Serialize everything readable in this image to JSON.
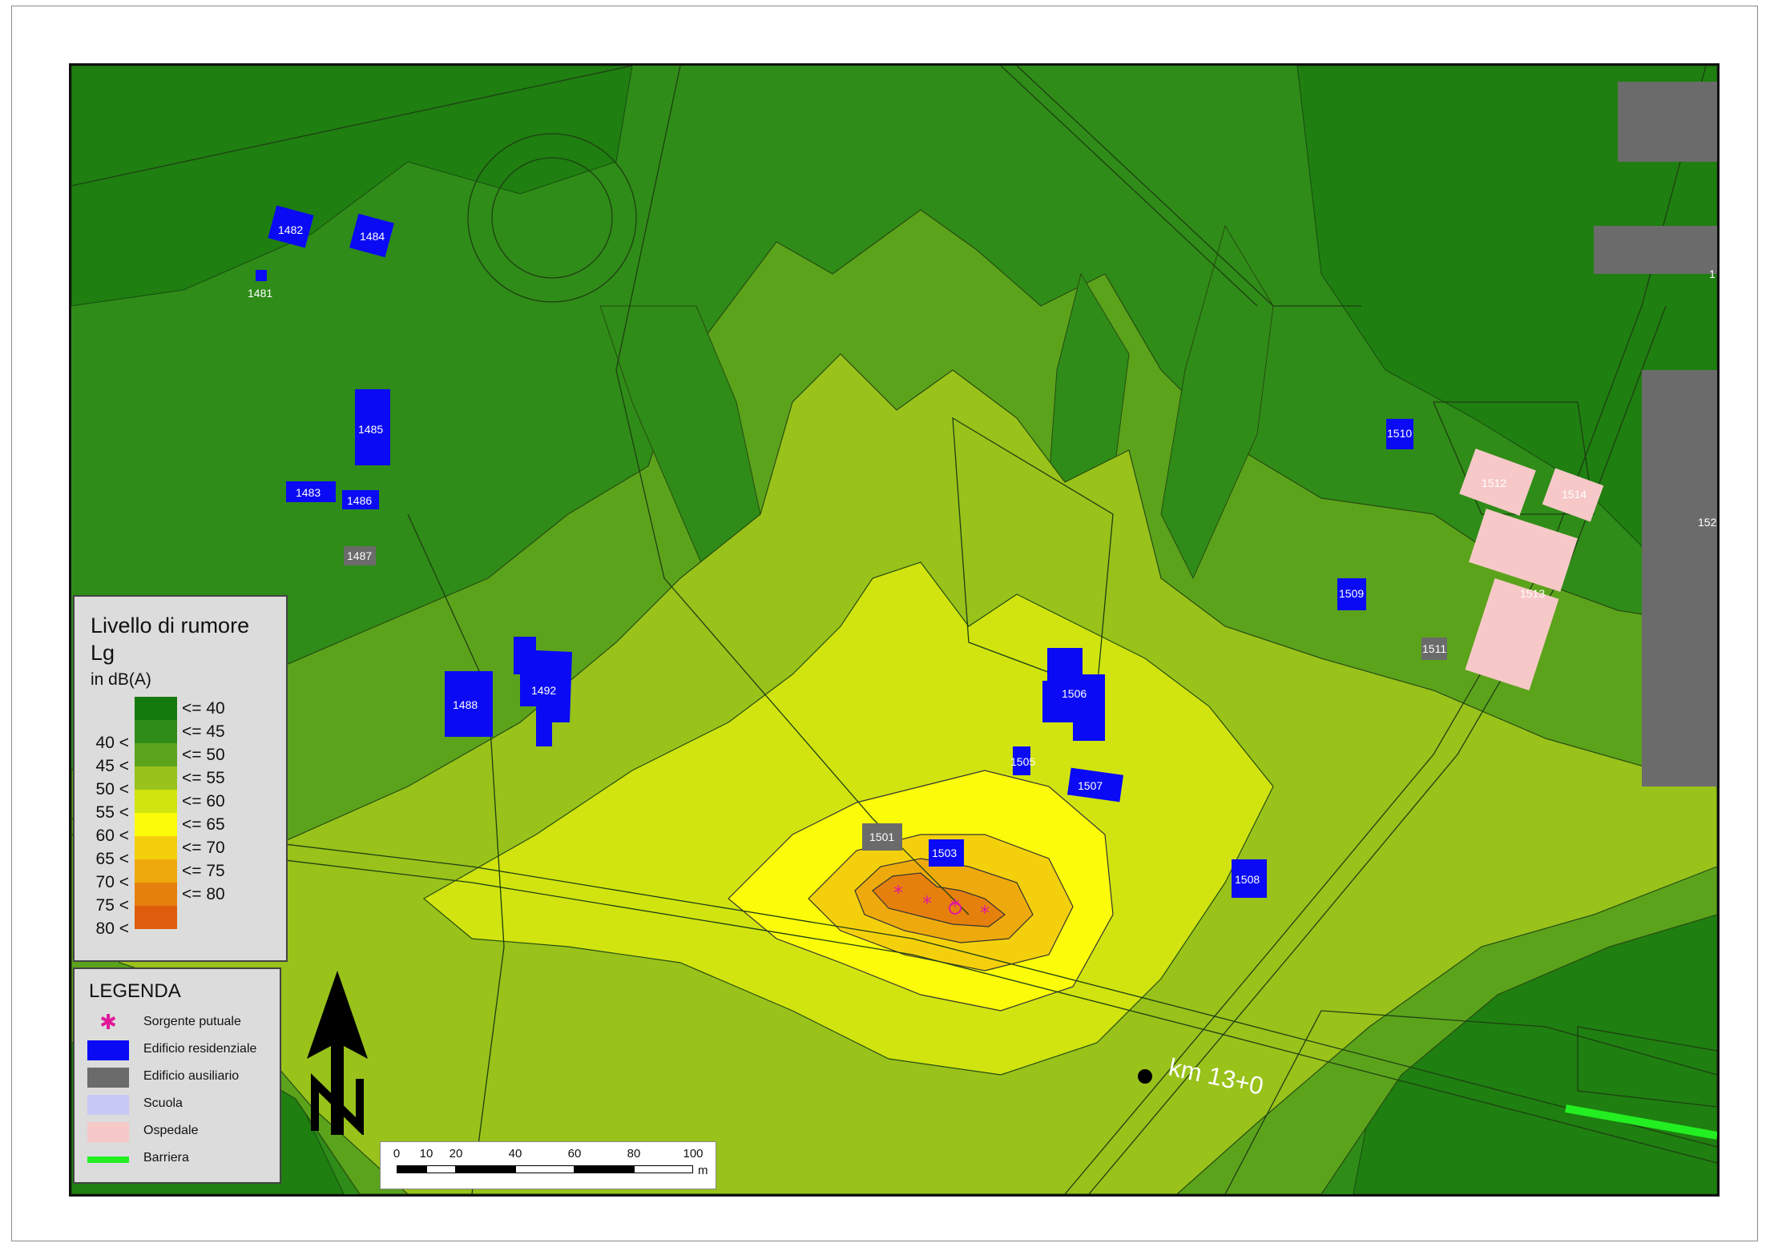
{
  "noise_legend": {
    "title_line1": "Livello di rumore",
    "title_line2": "Lg",
    "subtitle": "in dB(A)",
    "classes": [
      {
        "lower": "",
        "upper": "<= 40",
        "color": "#157a0e"
      },
      {
        "lower": "40 <",
        "upper": "<= 45",
        "color": "#2f8c18"
      },
      {
        "lower": "45 <",
        "upper": "<= 50",
        "color": "#5ca31c"
      },
      {
        "lower": "50 <",
        "upper": "<= 55",
        "color": "#99c21b"
      },
      {
        "lower": "55 <",
        "upper": "<= 60",
        "color": "#d1e410"
      },
      {
        "lower": "60 <",
        "upper": "<= 65",
        "color": "#fbfb0a"
      },
      {
        "lower": "65 <",
        "upper": "<= 70",
        "color": "#f4d00c"
      },
      {
        "lower": "70 <",
        "upper": "<= 75",
        "color": "#eeaa0c"
      },
      {
        "lower": "75 <",
        "upper": "<= 80",
        "color": "#e6800c"
      },
      {
        "lower": "80 <",
        "upper": "",
        "color": "#de5c0b"
      }
    ]
  },
  "symbol_legend": {
    "title": "LEGENDA",
    "items": [
      {
        "label": "Sorgente putuale",
        "symbol": "asterisk-icon",
        "color": "#e0199b"
      },
      {
        "label": "Edificio residenziale",
        "symbol": "fill",
        "color": "#0a0af5"
      },
      {
        "label": "Edificio ausiliario",
        "symbol": "fill",
        "color": "#6b6b6b"
      },
      {
        "label": "Scuola",
        "symbol": "fill",
        "color": "#c8c8f5"
      },
      {
        "label": "Ospedale",
        "symbol": "fill",
        "color": "#f7c8c8"
      },
      {
        "label": "Barriera",
        "symbol": "line",
        "color": "#22ee22"
      }
    ]
  },
  "scale_bar": {
    "ticks": [
      "0",
      "10",
      "20",
      "40",
      "60",
      "80",
      "100"
    ],
    "unit": "m"
  },
  "map": {
    "chainage_label": "km 13+0",
    "buildings": [
      {
        "id": "1481",
        "type": "residential"
      },
      {
        "id": "1482",
        "type": "residential"
      },
      {
        "id": "1483",
        "type": "residential"
      },
      {
        "id": "1484",
        "type": "residential"
      },
      {
        "id": "1485",
        "type": "residential"
      },
      {
        "id": "1486",
        "type": "residential"
      },
      {
        "id": "1487",
        "type": "auxiliary"
      },
      {
        "id": "1488",
        "type": "residential"
      },
      {
        "id": "1492",
        "type": "residential"
      },
      {
        "id": "1501",
        "type": "auxiliary"
      },
      {
        "id": "1503",
        "type": "residential"
      },
      {
        "id": "1505",
        "type": "residential"
      },
      {
        "id": "1506",
        "type": "residential"
      },
      {
        "id": "1507",
        "type": "residential"
      },
      {
        "id": "1508",
        "type": "residential"
      },
      {
        "id": "1509",
        "type": "residential"
      },
      {
        "id": "1510",
        "type": "residential"
      },
      {
        "id": "1511",
        "type": "auxiliary"
      },
      {
        "id": "1512",
        "type": "hospital"
      },
      {
        "id": "1513",
        "type": "hospital"
      },
      {
        "id": "1514",
        "type": "hospital"
      },
      {
        "id": "152",
        "type": "auxiliary"
      },
      {
        "id": "1",
        "type": "auxiliary"
      }
    ],
    "colors": {
      "residential": "#0a0af5",
      "auxiliary": "#6b6b6b",
      "hospital": "#f7c8c8",
      "barrier": "#22ee22",
      "source": "#e0199b"
    }
  }
}
